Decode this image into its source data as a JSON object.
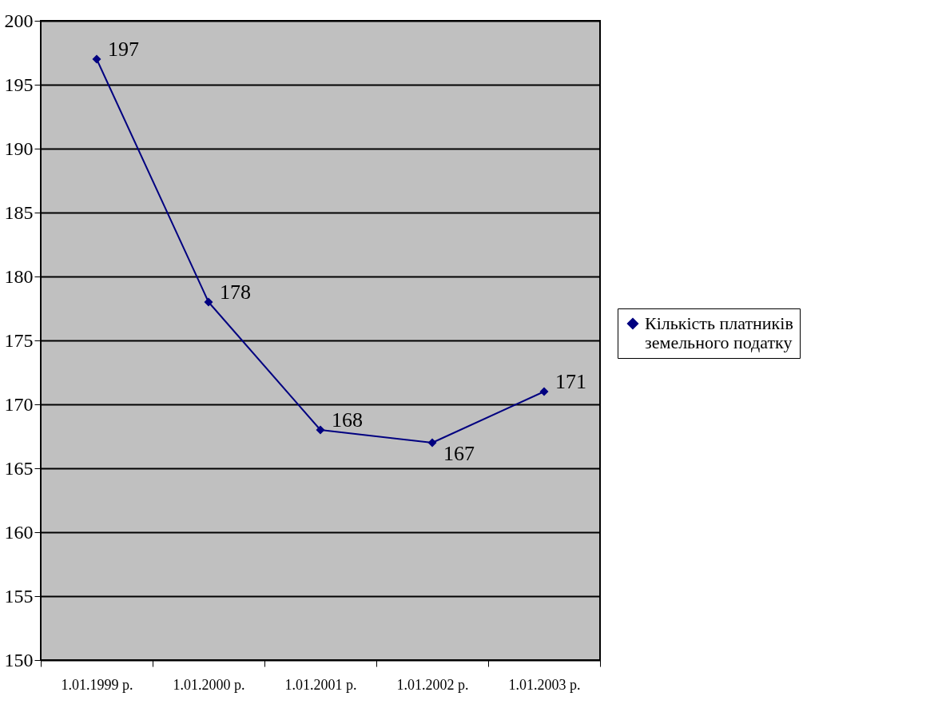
{
  "chart_data": {
    "type": "line",
    "categories": [
      "1.01.1999 р.",
      "1.01.2000 р.",
      "1.01.2001 р.",
      "1.01.2002 р.",
      "1.01.2003 р."
    ],
    "series": [
      {
        "name": "Кількість платників земельного податку",
        "color": "#000080",
        "values": [
          197,
          178,
          168,
          167,
          171
        ]
      }
    ],
    "ylim": [
      150,
      200
    ],
    "yticks": [
      150,
      155,
      160,
      165,
      170,
      175,
      180,
      185,
      190,
      195,
      200
    ],
    "grid": "y",
    "legend": "right",
    "marker": "diamond",
    "line_style": "solid",
    "data_labels": true
  }
}
